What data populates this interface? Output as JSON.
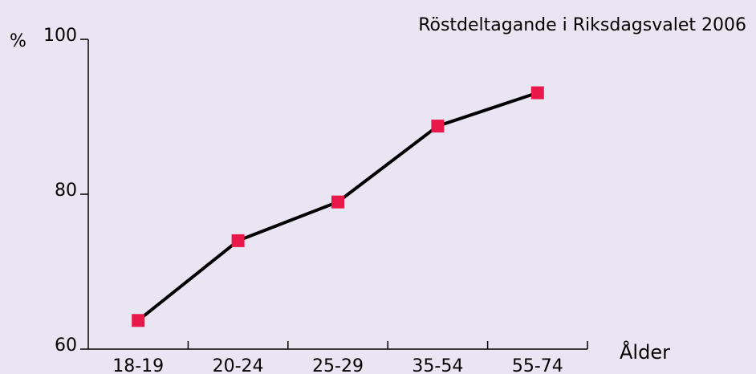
{
  "chart_data": {
    "type": "line",
    "title": "Röstdeltagande i Riksdagsvalet 2006",
    "y_label": "%",
    "x_label": "Ålder",
    "categories": [
      "18-19",
      "20-24",
      "25-29",
      "35-54",
      "55-74"
    ],
    "values": [
      63.7,
      74,
      79,
      88.8,
      93.1
    ],
    "color": "#000000",
    "marker_color": "#e8194a",
    "ylim": [
      60,
      100
    ],
    "yticks": [
      60,
      80,
      100
    ],
    "grid": false
  }
}
